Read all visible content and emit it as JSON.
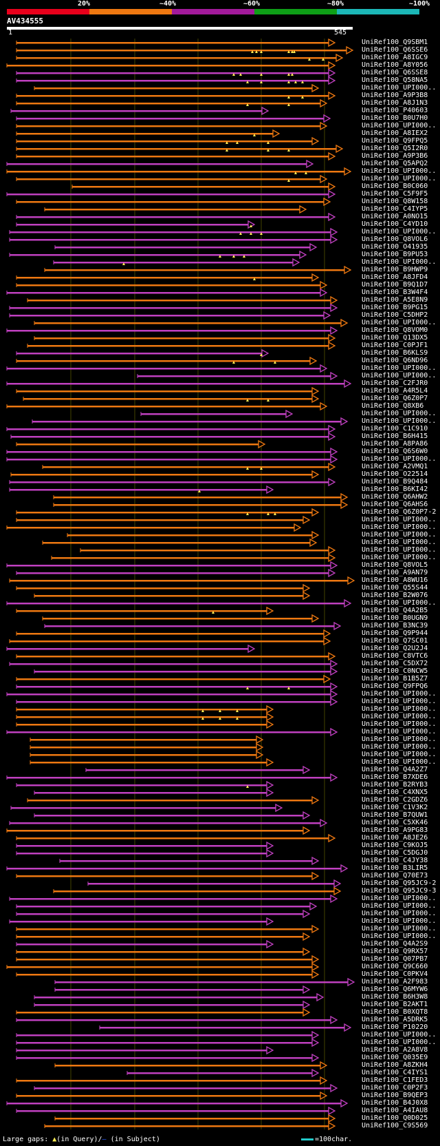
{
  "scale": {
    "labels": [
      "20%",
      "~40%",
      "~60%",
      "~80%",
      "~100%"
    ],
    "colors": [
      "#e8001b",
      "#ee7811",
      "#a21a9b",
      "#0e9f17",
      "#1cb7b7"
    ]
  },
  "query": {
    "id": "AV434555",
    "start": "1",
    "end": "545"
  },
  "colors": {
    "orange": "#ee7811",
    "purple": "#c040c0",
    "grid": "#444400",
    "triangle": "#ffee55",
    "background": "#000000"
  },
  "hits": [
    {
      "label": "UniRef100_Q9SBM1",
      "c": "o",
      "s": 24,
      "e": 487,
      "gaps": []
    },
    {
      "label": "UniRef100_Q6SSE6",
      "c": "o",
      "s": 24,
      "e": 513,
      "gaps": [
        367,
        373,
        380,
        420,
        425,
        428
      ]
    },
    {
      "label": "UniRef100_A8IGC9",
      "c": "o",
      "s": 24,
      "e": 498,
      "gaps": [
        450,
        470
      ]
    },
    {
      "label": "UniRef100_A8Y056",
      "c": "o",
      "s": 10,
      "e": 487,
      "gaps": []
    },
    {
      "label": "UniRef100_Q6SSE8",
      "c": "p",
      "s": 24,
      "e": 487,
      "gaps": [
        340,
        350,
        380,
        420,
        425
      ]
    },
    {
      "label": "UniRef100_Q58NA5",
      "c": "p",
      "s": 24,
      "e": 487,
      "gaps": [
        360,
        380,
        420,
        430,
        440
      ]
    },
    {
      "label": "UniRef100_UPI000..",
      "c": "o",
      "s": 50,
      "e": 463,
      "gaps": []
    },
    {
      "label": "UniRef100_A9P3B8",
      "c": "o",
      "s": 24,
      "e": 487,
      "gaps": [
        420,
        440
      ]
    },
    {
      "label": "UniRef100_A8J1N3",
      "c": "o",
      "s": 24,
      "e": 475,
      "gaps": [
        360,
        420
      ]
    },
    {
      "label": "UniRef100_P40603",
      "c": "p",
      "s": 16,
      "e": 390,
      "gaps": []
    },
    {
      "label": "UniRef100_B0U7H0",
      "c": "p",
      "s": 24,
      "e": 480,
      "gaps": []
    },
    {
      "label": "UniRef100_UPI000..",
      "c": "o",
      "s": 24,
      "e": 475,
      "gaps": []
    },
    {
      "label": "UniRef100_A8IEX2",
      "c": "o",
      "s": 24,
      "e": 406,
      "gaps": [
        370
      ]
    },
    {
      "label": "UniRef100_Q9FPQ5",
      "c": "o",
      "s": 24,
      "e": 463,
      "gaps": [
        330,
        345,
        390
      ]
    },
    {
      "label": "UniRef100_Q5I2R0",
      "c": "o",
      "s": 24,
      "e": 498,
      "gaps": [
        330,
        390,
        420
      ]
    },
    {
      "label": "UniRef100_A9P3B6",
      "c": "o",
      "s": 24,
      "e": 487,
      "gaps": []
    },
    {
      "label": "UniRef100_Q5APQ2",
      "c": "p",
      "s": 10,
      "e": 455,
      "gaps": []
    },
    {
      "label": "UniRef100_UPI000..",
      "c": "o",
      "s": 10,
      "e": 510,
      "gaps": [
        430,
        445
      ]
    },
    {
      "label": "UniRef100_UPI000..",
      "c": "o",
      "s": 24,
      "e": 475,
      "gaps": [
        420
      ]
    },
    {
      "label": "UniRef100_B0C060",
      "c": "o",
      "s": 105,
      "e": 487,
      "gaps": []
    },
    {
      "label": "UniRef100_C5F9F5",
      "c": "p",
      "s": 10,
      "e": 487,
      "gaps": []
    },
    {
      "label": "UniRef100_Q8W158",
      "c": "o",
      "s": 24,
      "e": 480,
      "gaps": []
    },
    {
      "label": "UniRef100_C4IYP5",
      "c": "o",
      "s": 65,
      "e": 445,
      "gaps": []
    },
    {
      "label": "UniRef100_A0NO15",
      "c": "p",
      "s": 24,
      "e": 487,
      "gaps": []
    },
    {
      "label": "UniRef100_C4YD10",
      "c": "p",
      "s": 24,
      "e": 370,
      "gaps": [
        365
      ]
    },
    {
      "label": "UniRef100_UPI000..",
      "c": "p",
      "s": 14,
      "e": 490,
      "gaps": [
        350,
        365,
        380
      ]
    },
    {
      "label": "UniRef100_Q8VOL6",
      "c": "p",
      "s": 14,
      "e": 490,
      "gaps": []
    },
    {
      "label": "UniRef100_O41935",
      "c": "p",
      "s": 80,
      "e": 460,
      "gaps": []
    },
    {
      "label": "UniRef100_B9PU53",
      "c": "p",
      "s": 14,
      "e": 445,
      "gaps": [
        320,
        340,
        355
      ]
    },
    {
      "label": "UniRef100_UPI000..",
      "c": "p",
      "s": 78,
      "e": 435,
      "gaps": [
        180
      ]
    },
    {
      "label": "UniRef100_B9HWP9",
      "c": "o",
      "s": 65,
      "e": 510,
      "gaps": []
    },
    {
      "label": "UniRef100_A8JFD4",
      "c": "o",
      "s": 24,
      "e": 463,
      "gaps": [
        370
      ]
    },
    {
      "label": "UniRef100_B9Q1D7",
      "c": "o",
      "s": 24,
      "e": 475,
      "gaps": []
    },
    {
      "label": "UniRef100_B3W4F4",
      "c": "p",
      "s": 10,
      "e": 475,
      "gaps": []
    },
    {
      "label": "UniRef100_A5E8N9",
      "c": "o",
      "s": 40,
      "e": 490,
      "gaps": []
    },
    {
      "label": "UniRef100_B9PG15",
      "c": "p",
      "s": 14,
      "e": 490,
      "gaps": []
    },
    {
      "label": "UniRef100_C5DHP2",
      "c": "p",
      "s": 14,
      "e": 480,
      "gaps": []
    },
    {
      "label": "UniRef100_UPI000..",
      "c": "o",
      "s": 50,
      "e": 505,
      "gaps": []
    },
    {
      "label": "UniRef100_Q8VOM0",
      "c": "p",
      "s": 10,
      "e": 490,
      "gaps": []
    },
    {
      "label": "UniRef100_Q13DX5",
      "c": "o",
      "s": 50,
      "e": 487,
      "gaps": []
    },
    {
      "label": "UniRef100_C0PJF1",
      "c": "o",
      "s": 40,
      "e": 487,
      "gaps": []
    },
    {
      "label": "UniRef100_B6KLS9",
      "c": "p",
      "s": 24,
      "e": 390,
      "gaps": [
        380
      ]
    },
    {
      "label": "UniRef100_Q6ND96",
      "c": "o",
      "s": 24,
      "e": 460,
      "gaps": [
        340,
        400
      ]
    },
    {
      "label": "UniRef100_UPI000..",
      "c": "p",
      "s": 10,
      "e": 475,
      "gaps": []
    },
    {
      "label": "UniRef100_UPI000..",
      "c": "p",
      "s": 200,
      "e": 490,
      "gaps": []
    },
    {
      "label": "UniRef100_C2FJR0",
      "c": "p",
      "s": 10,
      "e": 510,
      "gaps": []
    },
    {
      "label": "UniRef100_A4R5L4",
      "c": "o",
      "s": 24,
      "e": 463,
      "gaps": []
    },
    {
      "label": "UniRef100_Q6Z0P7",
      "c": "o",
      "s": 34,
      "e": 463,
      "gaps": [
        360,
        390
      ]
    },
    {
      "label": "UniRef100_Q8XB6",
      "c": "o",
      "s": 10,
      "e": 475,
      "gaps": []
    },
    {
      "label": "UniRef100_UPI000..",
      "c": "p",
      "s": 205,
      "e": 425,
      "gaps": []
    },
    {
      "label": "UniRef100_UPI000..",
      "c": "p",
      "s": 47,
      "e": 505,
      "gaps": []
    },
    {
      "label": "UniRef100_C1C910",
      "c": "p",
      "s": 10,
      "e": 487,
      "gaps": []
    },
    {
      "label": "UniRef100_B6H415",
      "c": "p",
      "s": 16,
      "e": 487,
      "gaps": []
    },
    {
      "label": "UniRef100_A8PA86",
      "c": "o",
      "s": 24,
      "e": 385,
      "gaps": []
    },
    {
      "label": "UniRef100_Q6S6W0",
      "c": "p",
      "s": 10,
      "e": 490,
      "gaps": []
    },
    {
      "label": "UniRef100_UPI000..",
      "c": "p",
      "s": 10,
      "e": 490,
      "gaps": []
    },
    {
      "label": "UniRef100_A2VMQ1",
      "c": "o",
      "s": 62,
      "e": 487,
      "gaps": [
        360,
        380
      ]
    },
    {
      "label": "UniRef100_O22514",
      "c": "o",
      "s": 16,
      "e": 463,
      "gaps": []
    },
    {
      "label": "UniRef100_B9Q484",
      "c": "p",
      "s": 14,
      "e": 487,
      "gaps": []
    },
    {
      "label": "UniRef100_B6KI42",
      "c": "p",
      "s": 14,
      "e": 397,
      "gaps": [
        290
      ]
    },
    {
      "label": "UniRef100_Q6AHW2",
      "c": "o",
      "s": 78,
      "e": 505,
      "gaps": []
    },
    {
      "label": "UniRef100_Q6AHS6",
      "c": "o",
      "s": 78,
      "e": 505,
      "gaps": []
    },
    {
      "label": "UniRef100_Q6Z0P7-2",
      "c": "o",
      "s": 24,
      "e": 463,
      "gaps": [
        360,
        390,
        400
      ]
    },
    {
      "label": "UniRef100_UPI000..",
      "c": "o",
      "s": 24,
      "e": 450,
      "gaps": []
    },
    {
      "label": "UniRef100_UPI000..",
      "c": "o",
      "s": 10,
      "e": 437,
      "gaps": []
    },
    {
      "label": "UniRef100_UPI000..",
      "c": "o",
      "s": 98,
      "e": 463,
      "gaps": []
    },
    {
      "label": "UniRef100_UPI000..",
      "c": "o",
      "s": 62,
      "e": 460,
      "gaps": []
    },
    {
      "label": "UniRef100_UPI000..",
      "c": "o",
      "s": 117,
      "e": 487,
      "gaps": []
    },
    {
      "label": "UniRef100_UPI000..",
      "c": "o",
      "s": 75,
      "e": 487,
      "gaps": []
    },
    {
      "label": "UniRef100_Q8VOL5",
      "c": "p",
      "s": 10,
      "e": 490,
      "gaps": []
    },
    {
      "label": "UniRef100_A9AN79",
      "c": "p",
      "s": 24,
      "e": 487,
      "gaps": []
    },
    {
      "label": "UniRef100_A8WU16",
      "c": "o",
      "s": 14,
      "e": 515,
      "gaps": []
    },
    {
      "label": "UniRef100_Q55S44",
      "c": "o",
      "s": 24,
      "e": 450,
      "gaps": []
    },
    {
      "label": "UniRef100_B2W076",
      "c": "o",
      "s": 50,
      "e": 450,
      "gaps": []
    },
    {
      "label": "UniRef100_UPI000..",
      "c": "p",
      "s": 10,
      "e": 510,
      "gaps": []
    },
    {
      "label": "UniRef100_Q4A2B5",
      "c": "o",
      "s": 24,
      "e": 397,
      "gaps": [
        310
      ]
    },
    {
      "label": "UniRef100_B0UGN9",
      "c": "o",
      "s": 62,
      "e": 463,
      "gaps": []
    },
    {
      "label": "UniRef100_B3NC39",
      "c": "p",
      "s": 65,
      "e": 495,
      "gaps": []
    },
    {
      "label": "UniRef100_Q9P944",
      "c": "o",
      "s": 24,
      "e": 480,
      "gaps": []
    },
    {
      "label": "UniRef100_Q7SC01",
      "c": "o",
      "s": 14,
      "e": 480,
      "gaps": []
    },
    {
      "label": "UniRef100_Q2U2J4",
      "c": "p",
      "s": 10,
      "e": 370,
      "gaps": []
    },
    {
      "label": "UniRef100_C8VTC6",
      "c": "o",
      "s": 24,
      "e": 487,
      "gaps": []
    },
    {
      "label": "UniRef100_C5DX72",
      "c": "p",
      "s": 14,
      "e": 490,
      "gaps": []
    },
    {
      "label": "UniRef100_C0NCW5",
      "c": "p",
      "s": 50,
      "e": 490,
      "gaps": []
    },
    {
      "label": "UniRef100_B1B5Z7",
      "c": "o",
      "s": 24,
      "e": 480,
      "gaps": []
    },
    {
      "label": "UniRef100_Q9FPQ6",
      "c": "p",
      "s": 24,
      "e": 490,
      "gaps": [
        360,
        420
      ]
    },
    {
      "label": "UniRef100_UPI000..",
      "c": "p",
      "s": 10,
      "e": 490,
      "gaps": []
    },
    {
      "label": "UniRef100_UPI000..",
      "c": "p",
      "s": 24,
      "e": 490,
      "gaps": []
    },
    {
      "label": "UniRef100_UPI000..",
      "c": "o",
      "s": 24,
      "e": 397,
      "gaps": [
        295,
        320,
        345
      ]
    },
    {
      "label": "UniRef100_UPI000..",
      "c": "o",
      "s": 24,
      "e": 397,
      "gaps": [
        295,
        320,
        345
      ]
    },
    {
      "label": "UniRef100_UPI000..",
      "c": "o",
      "s": 24,
      "e": 397,
      "gaps": []
    },
    {
      "label": "UniRef100_UPI000..",
      "c": "p",
      "s": 10,
      "e": 490,
      "gaps": []
    },
    {
      "label": "UniRef100_UPI000..",
      "c": "o",
      "s": 44,
      "e": 382,
      "gaps": []
    },
    {
      "label": "UniRef100_UPI000..",
      "c": "o",
      "s": 44,
      "e": 382,
      "gaps": []
    },
    {
      "label": "UniRef100_UPI000..",
      "c": "o",
      "s": 44,
      "e": 382,
      "gaps": []
    },
    {
      "label": "UniRef100_UPI000..",
      "c": "o",
      "s": 44,
      "e": 397,
      "gaps": []
    },
    {
      "label": "UniRef100_Q4A2Z7",
      "c": "p",
      "s": 125,
      "e": 450,
      "gaps": []
    },
    {
      "label": "UniRef100_B7XDE6",
      "c": "p",
      "s": 10,
      "e": 490,
      "gaps": []
    },
    {
      "label": "UniRef100_B2RYB3",
      "c": "p",
      "s": 24,
      "e": 397,
      "gaps": [
        360
      ]
    },
    {
      "label": "UniRef100_C4XNX5",
      "c": "p",
      "s": 50,
      "e": 397,
      "gaps": []
    },
    {
      "label": "UniRef100_C2GDZ6",
      "c": "o",
      "s": 40,
      "e": 463,
      "gaps": []
    },
    {
      "label": "UniRef100_C1V3K2",
      "c": "p",
      "s": 16,
      "e": 410,
      "gaps": []
    },
    {
      "label": "UniRef100_B7QUW1",
      "c": "p",
      "s": 50,
      "e": 450,
      "gaps": []
    },
    {
      "label": "UniRef100_C5XK46",
      "c": "p",
      "s": 14,
      "e": 475,
      "gaps": []
    },
    {
      "label": "UniRef100_A9PG83",
      "c": "o",
      "s": 10,
      "e": 450,
      "gaps": []
    },
    {
      "label": "UniRef100_A8JE26",
      "c": "o",
      "s": 24,
      "e": 487,
      "gaps": []
    },
    {
      "label": "UniRef100_C9KOJ5",
      "c": "p",
      "s": 24,
      "e": 397,
      "gaps": []
    },
    {
      "label": "UniRef100_C5DGJ0",
      "c": "p",
      "s": 24,
      "e": 397,
      "gaps": []
    },
    {
      "label": "UniRef100_C4JY38",
      "c": "p",
      "s": 87,
      "e": 463,
      "gaps": []
    },
    {
      "label": "UniRef100_B3LIR5",
      "c": "p",
      "s": 10,
      "e": 505,
      "gaps": []
    },
    {
      "label": "UniRef100_Q70E73",
      "c": "o",
      "s": 24,
      "e": 463,
      "gaps": []
    },
    {
      "label": "UniRef100_Q95JC9-2",
      "c": "p",
      "s": 128,
      "e": 495,
      "gaps": []
    },
    {
      "label": "UniRef100_Q95JC9-3",
      "c": "o",
      "s": 78,
      "e": 495,
      "gaps": []
    },
    {
      "label": "UniRef100_UPI000..",
      "c": "p",
      "s": 14,
      "e": 490,
      "gaps": []
    },
    {
      "label": "UniRef100_UPI000..",
      "c": "p",
      "s": 24,
      "e": 460,
      "gaps": []
    },
    {
      "label": "UniRef100_UPI000..",
      "c": "p",
      "s": 24,
      "e": 450,
      "gaps": []
    },
    {
      "label": "UniRef100_UPI000..",
      "c": "p",
      "s": 14,
      "e": 397,
      "gaps": []
    },
    {
      "label": "UniRef100_UPI000..",
      "c": "o",
      "s": 24,
      "e": 463,
      "gaps": []
    },
    {
      "label": "UniRef100_UPI000..",
      "c": "o",
      "s": 24,
      "e": 450,
      "gaps": []
    },
    {
      "label": "UniRef100_Q4A2S9",
      "c": "p",
      "s": 24,
      "e": 397,
      "gaps": []
    },
    {
      "label": "UniRef100_Q9RX57",
      "c": "o",
      "s": 24,
      "e": 450,
      "gaps": []
    },
    {
      "label": "UniRef100_Q07PB7",
      "c": "o",
      "s": 24,
      "e": 463,
      "gaps": []
    },
    {
      "label": "UniRef100_Q9C660",
      "c": "o",
      "s": 10,
      "e": 463,
      "gaps": []
    },
    {
      "label": "UniRef100_C0PKV4",
      "c": "o",
      "s": 24,
      "e": 463,
      "gaps": []
    },
    {
      "label": "UniRef100_A2F983",
      "c": "p",
      "s": 80,
      "e": 515,
      "gaps": []
    },
    {
      "label": "UniRef100_Q6MYW6",
      "c": "p",
      "s": 80,
      "e": 450,
      "gaps": []
    },
    {
      "label": "UniRef100_B6H3W8",
      "c": "p",
      "s": 50,
      "e": 470,
      "gaps": []
    },
    {
      "label": "UniRef100_B2AKT1",
      "c": "p",
      "s": 50,
      "e": 450,
      "gaps": []
    },
    {
      "label": "UniRef100_B0XQT8",
      "c": "o",
      "s": 24,
      "e": 450,
      "gaps": []
    },
    {
      "label": "UniRef100_A5DRK5",
      "c": "p",
      "s": 24,
      "e": 490,
      "gaps": []
    },
    {
      "label": "UniRef100_P10220",
      "c": "p",
      "s": 145,
      "e": 510,
      "gaps": []
    },
    {
      "label": "UniRef100_UPI000..",
      "c": "p",
      "s": 24,
      "e": 463,
      "gaps": []
    },
    {
      "label": "UniRef100_UPI000..",
      "c": "p",
      "s": 24,
      "e": 463,
      "gaps": []
    },
    {
      "label": "UniRef100_A2A8V8",
      "c": "p",
      "s": 24,
      "e": 397,
      "gaps": []
    },
    {
      "label": "UniRef100_Q035E9",
      "c": "p",
      "s": 24,
      "e": 463,
      "gaps": []
    },
    {
      "label": "UniRef100_A8ZKH4",
      "c": "o",
      "s": 80,
      "e": 475,
      "gaps": []
    },
    {
      "label": "UniRef100_C4IYS1",
      "c": "p",
      "s": 185,
      "e": 463,
      "gaps": []
    },
    {
      "label": "UniRef100_C1FED3",
      "c": "o",
      "s": 24,
      "e": 475,
      "gaps": []
    },
    {
      "label": "UniRef100_C0P2F3",
      "c": "p",
      "s": 50,
      "e": 490,
      "gaps": []
    },
    {
      "label": "UniRef100_B9QEP3",
      "c": "o",
      "s": 24,
      "e": 475,
      "gaps": []
    },
    {
      "label": "UniRef100_B4J0X8",
      "c": "p",
      "s": 10,
      "e": 505,
      "gaps": []
    },
    {
      "label": "UniRef100_A4IAU8",
      "c": "p",
      "s": 24,
      "e": 487,
      "gaps": []
    },
    {
      "label": "UniRef100_Q0D025",
      "c": "o",
      "s": 80,
      "e": 487,
      "gaps": []
    },
    {
      "label": "UniRef100_C9S569",
      "c": "o",
      "s": 65,
      "e": 487,
      "gaps": []
    }
  ],
  "footer": {
    "gaps_prefix": "Large gaps:",
    "query_triangle": "▲",
    "query_text": "(in Query)/",
    "subject_dash": "–",
    "subject_text": "(in Subject)",
    "scale_text": "=100char."
  }
}
